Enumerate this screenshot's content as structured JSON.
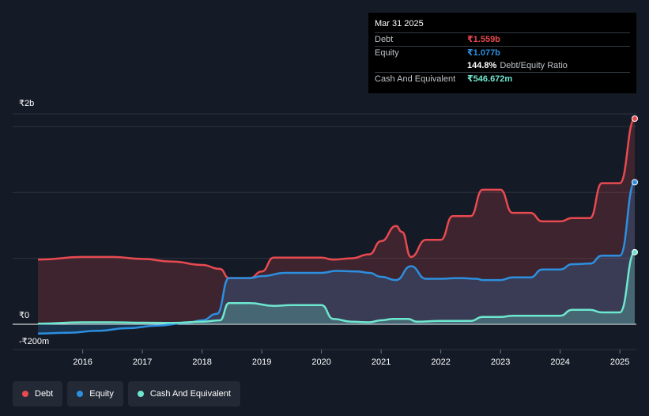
{
  "tooltip": {
    "date": "Mar 31 2025",
    "debt_label": "Debt",
    "debt_value": "₹1.559b",
    "equity_label": "Equity",
    "equity_value": "₹1.077b",
    "ratio_value": "144.8%",
    "ratio_label": "Debt/Equity Ratio",
    "cash_label": "Cash And Equivalent",
    "cash_value": "₹546.672m"
  },
  "legend": {
    "debt": "Debt",
    "equity": "Equity",
    "cash": "Cash And Equivalent"
  },
  "colors": {
    "debt": "#e84a50",
    "equity": "#2d8fe0",
    "cash": "#6ee7cf"
  },
  "chart_data": {
    "type": "area",
    "y_tick_labels": [
      "₹2b",
      "₹0",
      "-₹200m"
    ],
    "ylim": [
      -200,
      1600
    ],
    "x_tick_labels": [
      "2016",
      "2017",
      "2018",
      "2019",
      "2020",
      "2021",
      "2022",
      "2023",
      "2024",
      "2025"
    ],
    "xlim": [
      2015.25,
      2025.25
    ],
    "series": [
      {
        "name": "Debt",
        "points": [
          [
            2015.25,
            490
          ],
          [
            2016.0,
            510
          ],
          [
            2016.5,
            510
          ],
          [
            2017.0,
            495
          ],
          [
            2017.5,
            475
          ],
          [
            2018.0,
            450
          ],
          [
            2018.3,
            420
          ],
          [
            2018.45,
            350
          ],
          [
            2018.8,
            350
          ],
          [
            2019.0,
            400
          ],
          [
            2019.2,
            505
          ],
          [
            2019.5,
            505
          ],
          [
            2020.0,
            505
          ],
          [
            2020.2,
            490
          ],
          [
            2020.5,
            500
          ],
          [
            2020.8,
            530
          ],
          [
            2021.0,
            630
          ],
          [
            2021.25,
            745
          ],
          [
            2021.35,
            700
          ],
          [
            2021.5,
            510
          ],
          [
            2021.75,
            640
          ],
          [
            2022.0,
            640
          ],
          [
            2022.2,
            820
          ],
          [
            2022.5,
            820
          ],
          [
            2022.7,
            1020
          ],
          [
            2023.0,
            1020
          ],
          [
            2023.2,
            845
          ],
          [
            2023.5,
            845
          ],
          [
            2023.7,
            780
          ],
          [
            2024.0,
            780
          ],
          [
            2024.2,
            805
          ],
          [
            2024.5,
            805
          ],
          [
            2024.7,
            1070
          ],
          [
            2025.0,
            1070
          ],
          [
            2025.25,
            1559
          ]
        ]
      },
      {
        "name": "Equity",
        "points": [
          [
            2015.25,
            -70
          ],
          [
            2015.75,
            -65
          ],
          [
            2016.25,
            -50
          ],
          [
            2016.75,
            -30
          ],
          [
            2017.25,
            -10
          ],
          [
            2017.75,
            10
          ],
          [
            2018.0,
            30
          ],
          [
            2018.25,
            80
          ],
          [
            2018.45,
            350
          ],
          [
            2018.8,
            350
          ],
          [
            2019.0,
            365
          ],
          [
            2019.4,
            390
          ],
          [
            2019.8,
            390
          ],
          [
            2020.0,
            390
          ],
          [
            2020.25,
            405
          ],
          [
            2020.6,
            400
          ],
          [
            2020.8,
            390
          ],
          [
            2021.0,
            360
          ],
          [
            2021.25,
            335
          ],
          [
            2021.5,
            440
          ],
          [
            2021.75,
            345
          ],
          [
            2022.0,
            345
          ],
          [
            2022.3,
            350
          ],
          [
            2022.6,
            345
          ],
          [
            2022.7,
            335
          ],
          [
            2023.0,
            335
          ],
          [
            2023.2,
            355
          ],
          [
            2023.5,
            355
          ],
          [
            2023.7,
            415
          ],
          [
            2024.0,
            415
          ],
          [
            2024.2,
            455
          ],
          [
            2024.5,
            460
          ],
          [
            2024.7,
            520
          ],
          [
            2025.0,
            520
          ],
          [
            2025.25,
            1077
          ]
        ]
      },
      {
        "name": "Cash And Equivalent",
        "points": [
          [
            2015.25,
            5
          ],
          [
            2016.0,
            15
          ],
          [
            2016.5,
            15
          ],
          [
            2017.0,
            12
          ],
          [
            2017.5,
            10
          ],
          [
            2018.0,
            20
          ],
          [
            2018.3,
            30
          ],
          [
            2018.45,
            160
          ],
          [
            2018.8,
            160
          ],
          [
            2019.2,
            140
          ],
          [
            2019.5,
            145
          ],
          [
            2020.0,
            145
          ],
          [
            2020.2,
            40
          ],
          [
            2020.5,
            20
          ],
          [
            2020.8,
            15
          ],
          [
            2021.0,
            30
          ],
          [
            2021.2,
            40
          ],
          [
            2021.45,
            40
          ],
          [
            2021.6,
            20
          ],
          [
            2022.0,
            25
          ],
          [
            2022.5,
            25
          ],
          [
            2022.7,
            55
          ],
          [
            2023.0,
            55
          ],
          [
            2023.2,
            65
          ],
          [
            2023.5,
            65
          ],
          [
            2024.0,
            65
          ],
          [
            2024.2,
            110
          ],
          [
            2024.5,
            110
          ],
          [
            2024.7,
            90
          ],
          [
            2025.0,
            90
          ],
          [
            2025.25,
            546.672
          ]
        ]
      }
    ]
  }
}
